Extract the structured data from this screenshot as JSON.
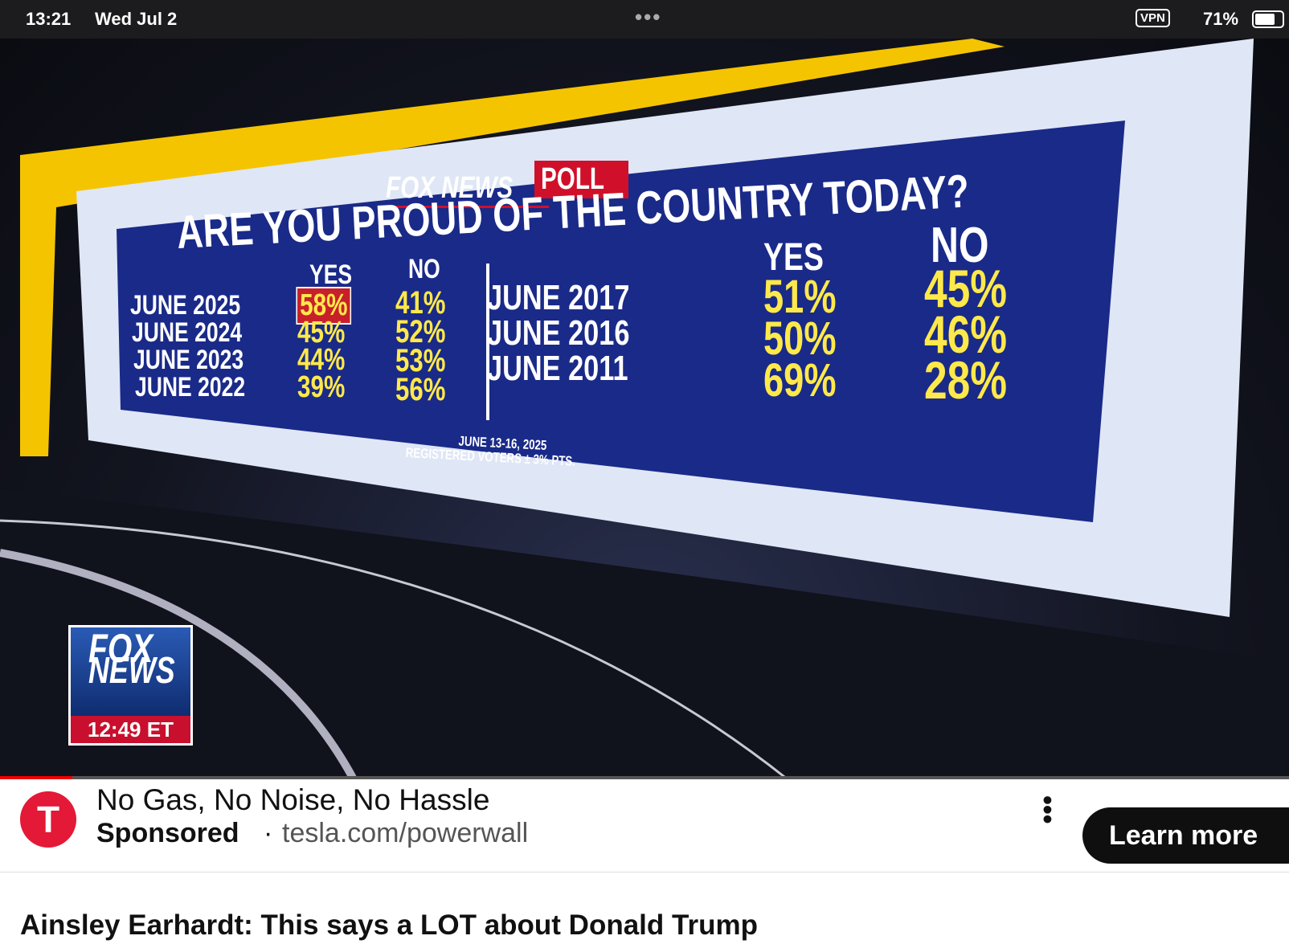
{
  "status_bar": {
    "time": "13:21",
    "date": "Wed Jul 2",
    "vpn": "VPN",
    "battery": "71%"
  },
  "video": {
    "poll": {
      "brand": "FOX NEWS",
      "label": "POLL",
      "question": "ARE YOU PROUD OF THE COUNTRY TODAY?",
      "left": {
        "headers": [
          "YES",
          "NO"
        ],
        "rows": [
          [
            "JUNE 2025",
            "58%",
            "41%"
          ],
          [
            "JUNE 2024",
            "45%",
            "52%"
          ],
          [
            "JUNE 2023",
            "44%",
            "53%"
          ],
          [
            "JUNE 2022",
            "39%",
            "56%"
          ]
        ]
      },
      "right": {
        "headers": [
          "YES",
          "NO"
        ],
        "rows": [
          [
            "JUNE 2017",
            "51%",
            "45%"
          ],
          [
            "JUNE 2016",
            "50%",
            "46%"
          ],
          [
            "JUNE 2011",
            "69%",
            "28%"
          ]
        ]
      },
      "footnote": [
        "JUNE 13-16, 2025",
        "REGISTERED VOTERS ± 3% PTS."
      ]
    },
    "bug": {
      "line1": "FOX",
      "line2": "NEWS",
      "time": "12:49 ET"
    }
  },
  "ad": {
    "title": "No Gas, No Noise, No Hassle",
    "sponsored": "Sponsored",
    "separator": "·",
    "url": "tesla.com/powerwall",
    "button": "Learn more"
  },
  "video_title": "Ainsley Earhardt: This says a LOT about Donald Trump"
}
